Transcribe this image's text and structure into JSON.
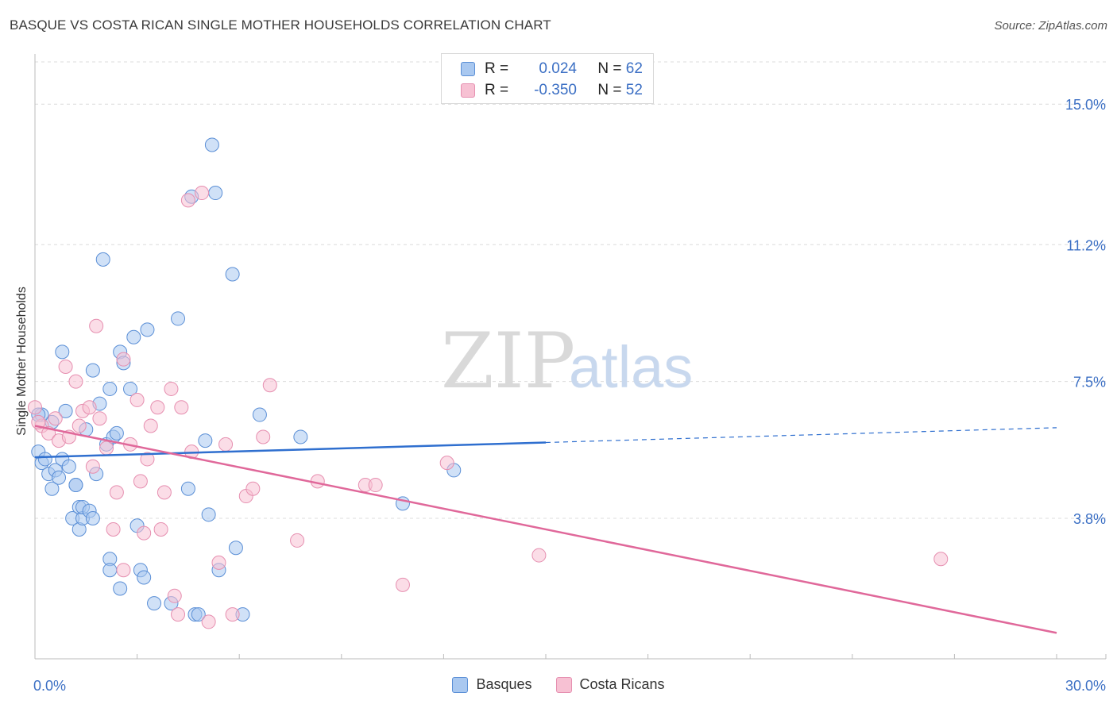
{
  "header": {
    "title": "BASQUE VS COSTA RICAN SINGLE MOTHER HOUSEHOLDS CORRELATION CHART",
    "source": "Source: ZipAtlas.com"
  },
  "legend": {
    "rows": [
      {
        "r_label": "R =",
        "r_value": "0.024",
        "n_label": "N =",
        "n_value": "62"
      },
      {
        "r_label": "R =",
        "r_value": "-0.350",
        "n_label": "N =",
        "n_value": "52"
      }
    ]
  },
  "bottom_legend": [
    "Basques",
    "Costa Ricans"
  ],
  "watermark": {
    "zip": "ZIP",
    "atlas": "atlas"
  },
  "colors": {
    "basque_fill": "#a9c8f0",
    "basque_stroke": "#5b8fd6",
    "basque_line": "#2f6fcf",
    "costa_fill": "#f7c1d3",
    "costa_stroke": "#e68fb0",
    "costa_line": "#e0689a",
    "tick_text": "#3b6fc4",
    "grid": "#dcdcdc"
  },
  "chart_data": {
    "type": "scatter",
    "title": "BASQUE VS COSTA RICAN SINGLE MOTHER HOUSEHOLDS CORRELATION CHART",
    "xlabel": "",
    "ylabel": "Single Mother Households",
    "xlim": [
      0,
      30
    ],
    "ylim": [
      0,
      16.1
    ],
    "x_ticks": [
      0,
      30
    ],
    "x_tick_labels": [
      "0.0%",
      "30.0%"
    ],
    "y_ticks": [
      3.8,
      7.5,
      11.2,
      15.0
    ],
    "y_tick_labels": [
      "3.8%",
      "7.5%",
      "11.2%",
      "15.0%"
    ],
    "grid": "horizontal dashed",
    "series": [
      {
        "name": "Basques",
        "points": [
          [
            0.1,
            5.6
          ],
          [
            0.2,
            5.3
          ],
          [
            0.3,
            5.4
          ],
          [
            0.4,
            5.0
          ],
          [
            0.5,
            4.6
          ],
          [
            0.5,
            6.4
          ],
          [
            0.6,
            5.1
          ],
          [
            0.7,
            4.9
          ],
          [
            0.8,
            8.3
          ],
          [
            0.8,
            5.4
          ],
          [
            0.9,
            6.7
          ],
          [
            1.0,
            5.2
          ],
          [
            1.1,
            3.8
          ],
          [
            1.2,
            4.7
          ],
          [
            1.2,
            4.7
          ],
          [
            1.3,
            4.1
          ],
          [
            1.3,
            3.5
          ],
          [
            1.4,
            3.8
          ],
          [
            1.4,
            4.1
          ],
          [
            1.5,
            6.2
          ],
          [
            1.6,
            4.0
          ],
          [
            1.7,
            7.8
          ],
          [
            1.8,
            5.0
          ],
          [
            1.9,
            6.9
          ],
          [
            2.0,
            10.8
          ],
          [
            2.1,
            5.8
          ],
          [
            2.2,
            7.3
          ],
          [
            2.2,
            2.7
          ],
          [
            2.2,
            2.4
          ],
          [
            2.3,
            6.0
          ],
          [
            2.4,
            6.1
          ],
          [
            2.5,
            1.9
          ],
          [
            2.5,
            8.3
          ],
          [
            2.6,
            8.0
          ],
          [
            2.8,
            7.3
          ],
          [
            2.9,
            8.7
          ],
          [
            3.0,
            3.6
          ],
          [
            3.1,
            2.4
          ],
          [
            3.2,
            2.2
          ],
          [
            3.3,
            8.9
          ],
          [
            3.5,
            1.5
          ],
          [
            4.0,
            1.5
          ],
          [
            4.2,
            9.2
          ],
          [
            4.5,
            4.6
          ],
          [
            4.6,
            12.5
          ],
          [
            4.7,
            1.2
          ],
          [
            4.8,
            1.2
          ],
          [
            5.0,
            5.9
          ],
          [
            5.1,
            3.9
          ],
          [
            5.2,
            13.9
          ],
          [
            5.3,
            12.6
          ],
          [
            5.4,
            2.4
          ],
          [
            5.8,
            10.4
          ],
          [
            5.9,
            3.0
          ],
          [
            6.1,
            1.2
          ],
          [
            6.6,
            6.6
          ],
          [
            7.8,
            6.0
          ],
          [
            10.8,
            4.2
          ],
          [
            12.3,
            5.1
          ],
          [
            0.2,
            6.6
          ],
          [
            0.1,
            6.6
          ],
          [
            1.7,
            3.8
          ]
        ],
        "trend": {
          "x": [
            0,
            15
          ],
          "y": [
            5.45,
            5.85
          ]
        },
        "trend_dashed": {
          "x": [
            15,
            30
          ],
          "y": [
            5.85,
            6.25
          ]
        }
      },
      {
        "name": "Costa Ricans",
        "points": [
          [
            0.0,
            6.8
          ],
          [
            0.2,
            6.3
          ],
          [
            0.4,
            6.1
          ],
          [
            0.6,
            6.5
          ],
          [
            0.7,
            5.9
          ],
          [
            0.9,
            7.9
          ],
          [
            1.0,
            6.0
          ],
          [
            1.2,
            7.5
          ],
          [
            1.3,
            6.3
          ],
          [
            1.4,
            6.7
          ],
          [
            1.6,
            6.8
          ],
          [
            1.7,
            5.2
          ],
          [
            1.8,
            9.0
          ],
          [
            1.9,
            6.5
          ],
          [
            2.1,
            5.7
          ],
          [
            2.3,
            3.5
          ],
          [
            2.4,
            4.5
          ],
          [
            2.6,
            2.4
          ],
          [
            2.6,
            8.1
          ],
          [
            2.8,
            5.8
          ],
          [
            3.0,
            7.0
          ],
          [
            3.1,
            4.8
          ],
          [
            3.2,
            3.4
          ],
          [
            3.3,
            5.4
          ],
          [
            3.4,
            6.3
          ],
          [
            3.6,
            6.8
          ],
          [
            3.7,
            3.5
          ],
          [
            3.8,
            4.5
          ],
          [
            4.0,
            7.3
          ],
          [
            4.1,
            1.7
          ],
          [
            4.2,
            1.2
          ],
          [
            4.3,
            6.8
          ],
          [
            4.5,
            12.4
          ],
          [
            4.6,
            5.6
          ],
          [
            4.9,
            12.6
          ],
          [
            5.1,
            1.0
          ],
          [
            5.4,
            2.6
          ],
          [
            5.6,
            5.8
          ],
          [
            5.8,
            1.2
          ],
          [
            6.2,
            4.4
          ],
          [
            6.4,
            4.6
          ],
          [
            6.7,
            6.0
          ],
          [
            6.9,
            7.4
          ],
          [
            7.7,
            3.2
          ],
          [
            8.3,
            4.8
          ],
          [
            9.7,
            4.7
          ],
          [
            10.0,
            4.7
          ],
          [
            10.8,
            2.0
          ],
          [
            12.1,
            5.3
          ],
          [
            14.8,
            2.8
          ],
          [
            26.6,
            2.7
          ],
          [
            0.1,
            6.4
          ]
        ],
        "trend": {
          "x": [
            0,
            30
          ],
          "y": [
            6.3,
            0.7
          ]
        }
      }
    ]
  }
}
